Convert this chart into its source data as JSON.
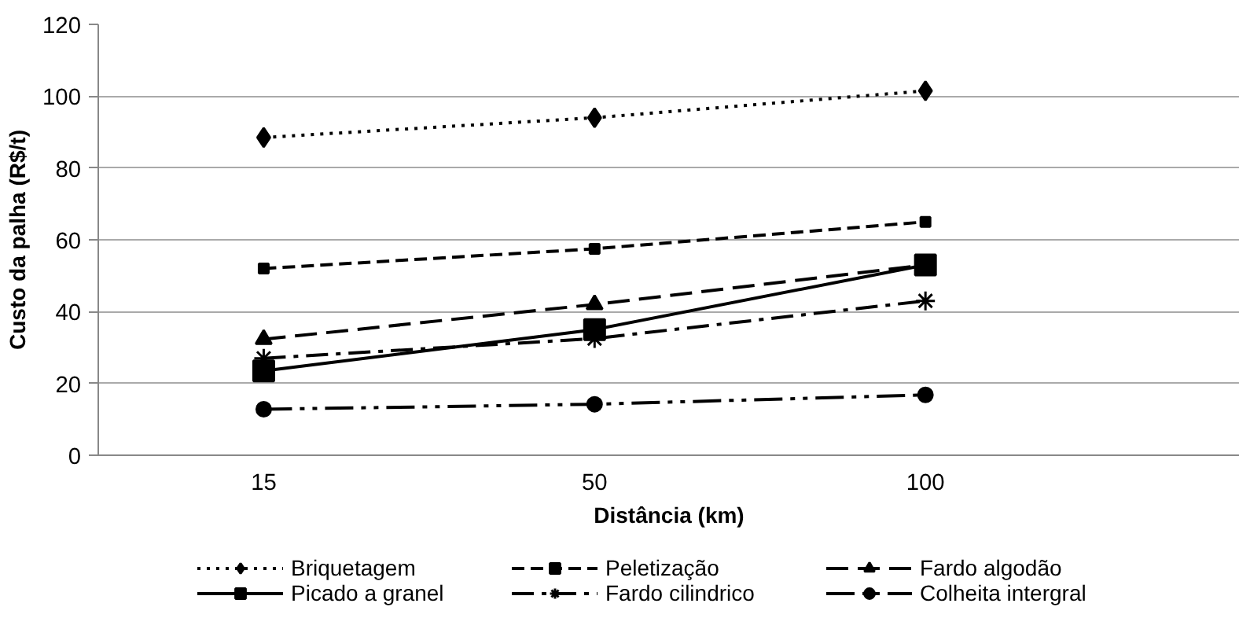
{
  "chart_data": {
    "type": "line",
    "xlabel": "Distância (km)",
    "ylabel": "Custo da palha (R$/t)",
    "categories": [
      "15",
      "50",
      "100"
    ],
    "ylim": [
      0,
      120
    ],
    "yticks": [
      0,
      20,
      40,
      60,
      80,
      100,
      120
    ],
    "grid": "y",
    "legend": "bottom",
    "series": [
      {
        "name": "Briquetagem",
        "color": "#000000",
        "marker": "diamond",
        "line_style": "dotted",
        "values": [
          88.5,
          94,
          101.5
        ]
      },
      {
        "name": "Peletização",
        "color": "#000000",
        "marker": "square",
        "line_style": "dashed",
        "values": [
          52,
          57.5,
          65
        ]
      },
      {
        "name": "Fardo algodão",
        "color": "#000000",
        "marker": "triangle",
        "line_style": "dashed",
        "values": [
          32.3,
          42,
          53
        ]
      },
      {
        "name": "Picado a granel",
        "color": "#000000",
        "marker": "square",
        "line_style": "solid",
        "values": [
          23.5,
          35,
          53
        ]
      },
      {
        "name": "Fardo cilindrico",
        "color": "#000000",
        "marker": "cross",
        "line_style": "dashed",
        "values": [
          27,
          32.5,
          43
        ]
      },
      {
        "name": "Colheita intergral",
        "color": "#000000",
        "marker": "circle",
        "line_style": "dashed",
        "values": [
          12.8,
          14.2,
          16.8
        ]
      }
    ]
  }
}
